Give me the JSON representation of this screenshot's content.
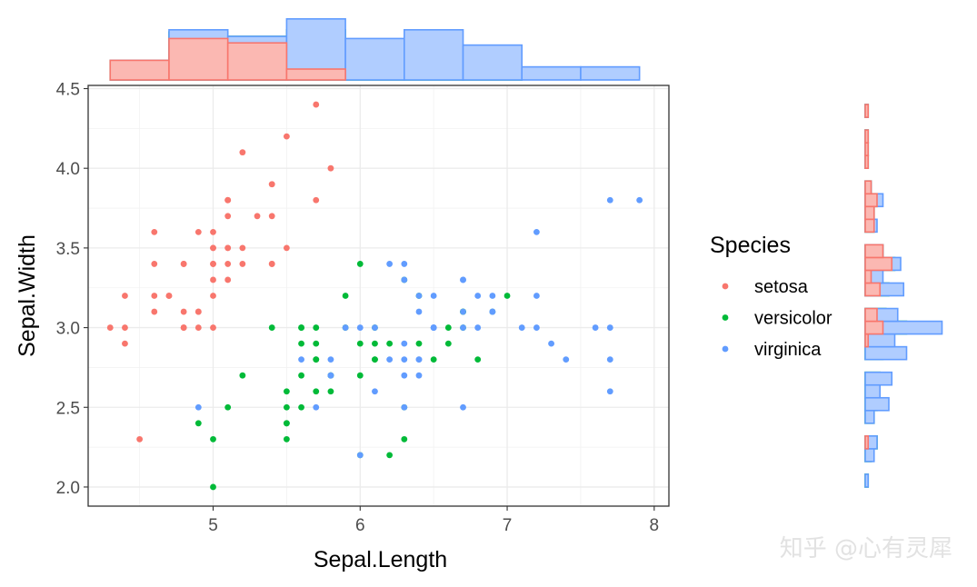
{
  "chart_data": {
    "type": "scatter",
    "xlabel": "Sepal.Length",
    "ylabel": "Sepal.Width",
    "xlim": [
      4.15,
      8.1
    ],
    "ylim": [
      1.88,
      4.52
    ],
    "x_ticks": [
      "5",
      "6",
      "7",
      "8"
    ],
    "y_ticks": [
      "2.0",
      "2.5",
      "3.0",
      "3.5",
      "4.0",
      "4.5"
    ],
    "grid": true,
    "legend": {
      "title": "Species",
      "position": "right"
    },
    "marginal_x": {
      "type": "stacked-histogram",
      "bin_edges": [
        4.3,
        4.7,
        5.1,
        5.5,
        5.9,
        6.3,
        6.7,
        7.1,
        7.5,
        7.9
      ]
    },
    "marginal_y": {
      "type": "stacked-histogram",
      "bin_edges": [
        2.0,
        2.08,
        2.16,
        2.24,
        2.32,
        2.4,
        2.48,
        2.56,
        2.64,
        2.72,
        2.8,
        2.88,
        2.96,
        3.04,
        3.12,
        3.2,
        3.28,
        3.36,
        3.44,
        3.52,
        3.6,
        3.68,
        3.76,
        3.84,
        3.92,
        4.0,
        4.08,
        4.16,
        4.24,
        4.32,
        4.4
      ]
    },
    "series": [
      {
        "name": "setosa",
        "color": "#F8766D",
        "fill": "#FBB8B2",
        "points": [
          [
            5.1,
            3.5
          ],
          [
            4.9,
            3.0
          ],
          [
            4.7,
            3.2
          ],
          [
            4.6,
            3.1
          ],
          [
            5.0,
            3.6
          ],
          [
            5.4,
            3.9
          ],
          [
            4.6,
            3.4
          ],
          [
            5.0,
            3.4
          ],
          [
            4.4,
            2.9
          ],
          [
            4.9,
            3.1
          ],
          [
            5.4,
            3.7
          ],
          [
            4.8,
            3.4
          ],
          [
            4.8,
            3.0
          ],
          [
            4.3,
            3.0
          ],
          [
            5.8,
            4.0
          ],
          [
            5.7,
            4.4
          ],
          [
            5.4,
            3.9
          ],
          [
            5.1,
            3.5
          ],
          [
            5.7,
            3.8
          ],
          [
            5.1,
            3.8
          ],
          [
            5.4,
            3.4
          ],
          [
            5.1,
            3.7
          ],
          [
            4.6,
            3.6
          ],
          [
            5.1,
            3.3
          ],
          [
            4.8,
            3.4
          ],
          [
            5.0,
            3.0
          ],
          [
            5.0,
            3.4
          ],
          [
            5.2,
            3.5
          ],
          [
            5.2,
            3.4
          ],
          [
            4.7,
            3.2
          ],
          [
            4.8,
            3.1
          ],
          [
            5.4,
            3.4
          ],
          [
            5.2,
            4.1
          ],
          [
            5.5,
            4.2
          ],
          [
            4.9,
            3.1
          ],
          [
            5.0,
            3.2
          ],
          [
            5.5,
            3.5
          ],
          [
            4.9,
            3.6
          ],
          [
            4.4,
            3.0
          ],
          [
            5.1,
            3.4
          ],
          [
            5.0,
            3.5
          ],
          [
            4.5,
            2.3
          ],
          [
            4.4,
            3.2
          ],
          [
            5.0,
            3.5
          ],
          [
            5.1,
            3.8
          ],
          [
            4.8,
            3.0
          ],
          [
            5.1,
            3.8
          ],
          [
            4.6,
            3.2
          ],
          [
            5.3,
            3.7
          ],
          [
            5.0,
            3.3
          ]
        ]
      },
      {
        "name": "versicolor",
        "color": "#00BA38",
        "fill": "#7FDC9B",
        "points": [
          [
            7.0,
            3.2
          ],
          [
            6.4,
            3.2
          ],
          [
            6.9,
            3.1
          ],
          [
            5.5,
            2.3
          ],
          [
            6.5,
            2.8
          ],
          [
            5.7,
            2.8
          ],
          [
            6.3,
            3.3
          ],
          [
            4.9,
            2.4
          ],
          [
            6.6,
            2.9
          ],
          [
            5.2,
            2.7
          ],
          [
            5.0,
            2.0
          ],
          [
            5.9,
            3.0
          ],
          [
            6.0,
            2.2
          ],
          [
            6.1,
            2.9
          ],
          [
            5.6,
            2.9
          ],
          [
            6.7,
            3.1
          ],
          [
            5.6,
            3.0
          ],
          [
            5.8,
            2.7
          ],
          [
            6.2,
            2.2
          ],
          [
            5.6,
            2.5
          ],
          [
            5.9,
            3.2
          ],
          [
            6.1,
            2.8
          ],
          [
            6.3,
            2.5
          ],
          [
            6.1,
            2.8
          ],
          [
            6.4,
            2.9
          ],
          [
            6.6,
            3.0
          ],
          [
            6.8,
            2.8
          ],
          [
            6.7,
            3.0
          ],
          [
            6.0,
            2.9
          ],
          [
            5.7,
            2.6
          ],
          [
            5.5,
            2.4
          ],
          [
            5.5,
            2.4
          ],
          [
            5.8,
            2.7
          ],
          [
            6.0,
            2.7
          ],
          [
            5.4,
            3.0
          ],
          [
            6.0,
            3.4
          ],
          [
            6.7,
            3.1
          ],
          [
            6.3,
            2.3
          ],
          [
            5.6,
            3.0
          ],
          [
            5.5,
            2.5
          ],
          [
            5.5,
            2.6
          ],
          [
            6.1,
            3.0
          ],
          [
            5.8,
            2.6
          ],
          [
            5.0,
            2.3
          ],
          [
            5.6,
            2.7
          ],
          [
            5.7,
            3.0
          ],
          [
            5.7,
            2.9
          ],
          [
            6.2,
            2.9
          ],
          [
            5.1,
            2.5
          ],
          [
            5.7,
            2.8
          ]
        ]
      },
      {
        "name": "virginica",
        "color": "#619CFF",
        "fill": "#B0CDFF",
        "points": [
          [
            6.3,
            3.3
          ],
          [
            5.8,
            2.7
          ],
          [
            7.1,
            3.0
          ],
          [
            6.3,
            2.9
          ],
          [
            6.5,
            3.0
          ],
          [
            7.6,
            3.0
          ],
          [
            4.9,
            2.5
          ],
          [
            7.3,
            2.9
          ],
          [
            6.7,
            2.5
          ],
          [
            7.2,
            3.6
          ],
          [
            6.5,
            3.2
          ],
          [
            6.4,
            2.7
          ],
          [
            6.8,
            3.0
          ],
          [
            5.7,
            2.5
          ],
          [
            5.8,
            2.8
          ],
          [
            6.4,
            3.2
          ],
          [
            6.5,
            3.0
          ],
          [
            7.7,
            3.8
          ],
          [
            7.7,
            2.6
          ],
          [
            6.0,
            2.2
          ],
          [
            6.9,
            3.2
          ],
          [
            5.6,
            2.8
          ],
          [
            7.7,
            2.8
          ],
          [
            6.3,
            2.7
          ],
          [
            6.7,
            3.3
          ],
          [
            7.2,
            3.2
          ],
          [
            6.2,
            2.8
          ],
          [
            6.1,
            3.0
          ],
          [
            6.4,
            2.8
          ],
          [
            7.2,
            3.0
          ],
          [
            7.4,
            2.8
          ],
          [
            7.9,
            3.8
          ],
          [
            6.4,
            2.8
          ],
          [
            6.3,
            2.8
          ],
          [
            6.1,
            2.6
          ],
          [
            7.7,
            3.0
          ],
          [
            6.3,
            3.4
          ],
          [
            6.4,
            3.1
          ],
          [
            6.0,
            3.0
          ],
          [
            6.9,
            3.1
          ],
          [
            6.7,
            3.1
          ],
          [
            6.9,
            3.1
          ],
          [
            5.8,
            2.7
          ],
          [
            6.8,
            3.2
          ],
          [
            6.7,
            3.3
          ],
          [
            6.7,
            3.0
          ],
          [
            6.3,
            2.5
          ],
          [
            6.5,
            3.0
          ],
          [
            6.2,
            3.4
          ],
          [
            5.9,
            3.0
          ]
        ]
      }
    ]
  },
  "watermark": "知乎 @心有灵犀"
}
